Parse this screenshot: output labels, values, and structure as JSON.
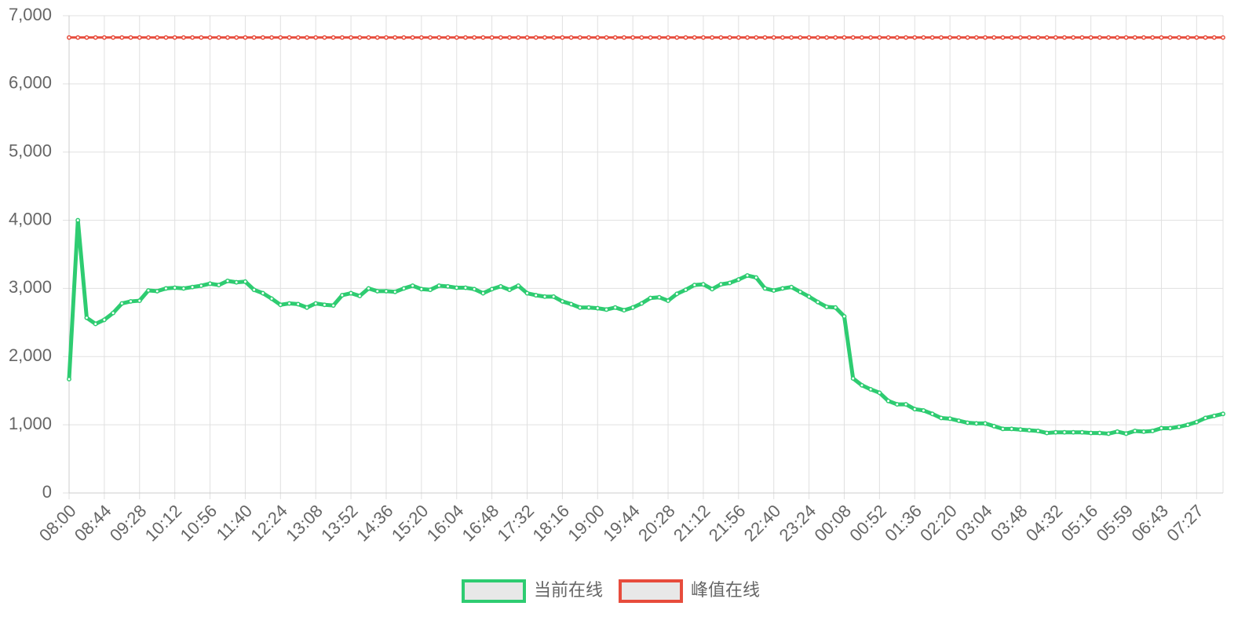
{
  "chart_data": {
    "type": "line",
    "categories": [
      "08:00",
      null,
      null,
      null,
      "08:44",
      null,
      null,
      null,
      "09:28",
      null,
      null,
      null,
      "10:12",
      null,
      null,
      null,
      "10:56",
      null,
      null,
      null,
      "11:40",
      null,
      null,
      null,
      "12:24",
      null,
      null,
      null,
      "13:08",
      null,
      null,
      null,
      "13:52",
      null,
      null,
      null,
      "14:36",
      null,
      null,
      null,
      "15:20",
      null,
      null,
      null,
      "16:04",
      null,
      null,
      null,
      "16:48",
      null,
      null,
      null,
      "17:32",
      null,
      null,
      null,
      "18:16",
      null,
      null,
      null,
      "19:00",
      null,
      null,
      null,
      "19:44",
      null,
      null,
      null,
      "20:28",
      null,
      null,
      null,
      "21:12",
      null,
      null,
      null,
      "21:56",
      null,
      null,
      null,
      "22:40",
      null,
      null,
      null,
      "23:24",
      null,
      null,
      null,
      "00:08",
      null,
      null,
      null,
      "00:52",
      null,
      null,
      null,
      "01:36",
      null,
      null,
      null,
      "02:20",
      null,
      null,
      null,
      "03:04",
      null,
      null,
      null,
      "03:48",
      null,
      null,
      null,
      "04:32",
      null,
      null,
      null,
      "05:16",
      null,
      null,
      null,
      "05:59",
      null,
      null,
      null,
      "06:43",
      null,
      null,
      null,
      "07:27",
      null,
      null,
      null
    ],
    "series": [
      {
        "name": "当前在线",
        "color": "#2ecc71",
        "values": [
          1670,
          4000,
          2570,
          2480,
          2540,
          2640,
          2780,
          2810,
          2820,
          2970,
          2960,
          3000,
          3010,
          3000,
          3020,
          3040,
          3070,
          3050,
          3110,
          3090,
          3100,
          2980,
          2930,
          2850,
          2760,
          2780,
          2770,
          2720,
          2780,
          2760,
          2750,
          2900,
          2930,
          2890,
          3000,
          2960,
          2960,
          2950,
          3000,
          3040,
          2990,
          2980,
          3040,
          3030,
          3010,
          3010,
          2990,
          2930,
          2990,
          3030,
          2980,
          3040,
          2930,
          2900,
          2880,
          2880,
          2810,
          2770,
          2720,
          2720,
          2710,
          2690,
          2720,
          2680,
          2720,
          2780,
          2860,
          2870,
          2820,
          2920,
          2980,
          3050,
          3060,
          2990,
          3060,
          3080,
          3130,
          3190,
          3160,
          3000,
          2970,
          3000,
          3020,
          2950,
          2880,
          2800,
          2730,
          2720,
          2590,
          1680,
          1580,
          1520,
          1470,
          1350,
          1300,
          1300,
          1230,
          1210,
          1160,
          1100,
          1090,
          1060,
          1030,
          1020,
          1020,
          980,
          940,
          940,
          930,
          920,
          910,
          880,
          890,
          890,
          890,
          890,
          880,
          880,
          870,
          900,
          870,
          910,
          900,
          910,
          950,
          950,
          970,
          1000,
          1040,
          1100,
          1130,
          1160
        ]
      },
      {
        "name": "峰值在线",
        "color": "#e74c3c",
        "values": [
          6680,
          6680,
          6680,
          6680,
          6680,
          6680,
          6680,
          6680,
          6680,
          6680,
          6680,
          6680,
          6680,
          6680,
          6680,
          6680,
          6680,
          6680,
          6680,
          6680,
          6680,
          6680,
          6680,
          6680,
          6680,
          6680,
          6680,
          6680,
          6680,
          6680,
          6680,
          6680,
          6680,
          6680,
          6680,
          6680,
          6680,
          6680,
          6680,
          6680,
          6680,
          6680,
          6680,
          6680,
          6680,
          6680,
          6680,
          6680,
          6680,
          6680,
          6680,
          6680,
          6680,
          6680,
          6680,
          6680,
          6680,
          6680,
          6680,
          6680,
          6680,
          6680,
          6680,
          6680,
          6680,
          6680,
          6680,
          6680,
          6680,
          6680,
          6680,
          6680,
          6680,
          6680,
          6680,
          6680,
          6680,
          6680,
          6680,
          6680,
          6680,
          6680,
          6680,
          6680,
          6680,
          6680,
          6680,
          6680,
          6680,
          6680,
          6680,
          6680,
          6680,
          6680,
          6680,
          6680,
          6680,
          6680,
          6680,
          6680,
          6680,
          6680,
          6680,
          6680,
          6680,
          6680,
          6680,
          6680,
          6680,
          6680,
          6680,
          6680,
          6680,
          6680,
          6680,
          6680,
          6680,
          6680,
          6680,
          6680,
          6680,
          6680,
          6680,
          6680,
          6680,
          6680,
          6680,
          6680,
          6680,
          6680,
          6680,
          6680
        ]
      }
    ],
    "ylim": [
      0,
      7000
    ],
    "yticks": [
      0,
      {
        "value": 1000,
        "label": "1,000"
      },
      {
        "value": 2000,
        "label": "2,000"
      },
      {
        "value": 3000,
        "label": "3,000"
      },
      {
        "value": 4000,
        "label": "4,000"
      },
      {
        "value": 5000,
        "label": "5,000"
      },
      {
        "value": 6000,
        "label": "6,000"
      },
      {
        "value": 7000,
        "label": "7,000"
      }
    ],
    "grid": true
  }
}
